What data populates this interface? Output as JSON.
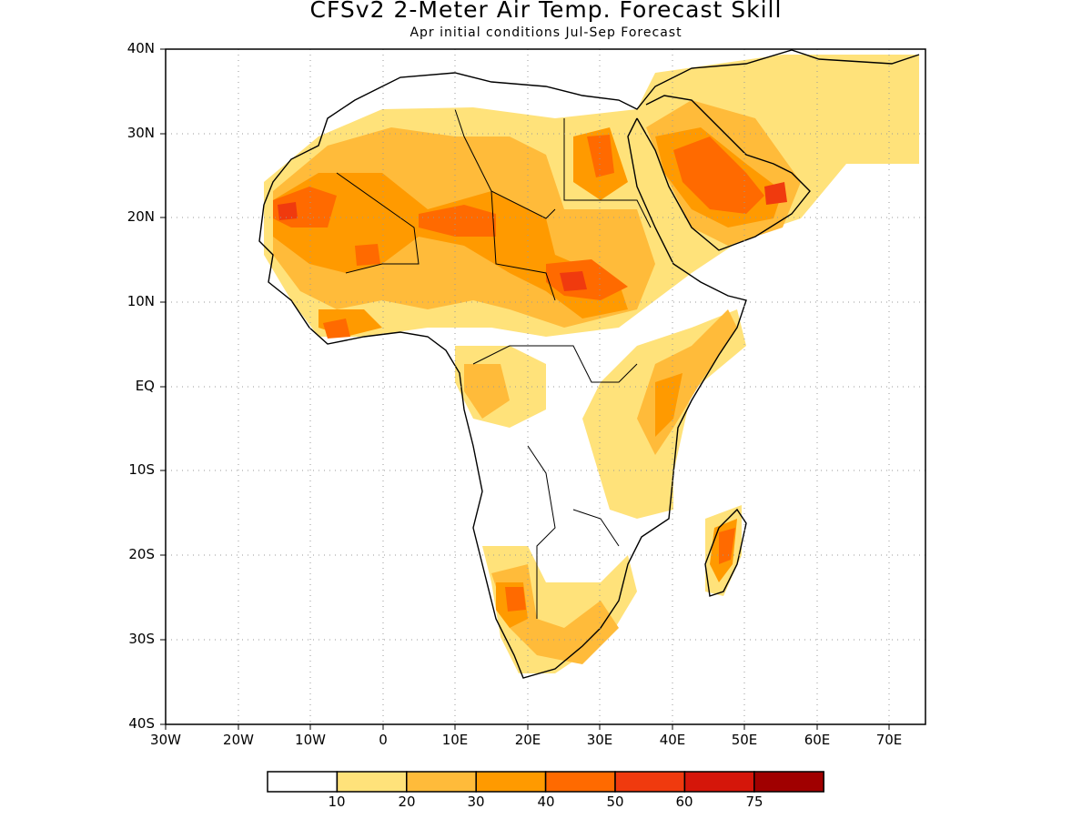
{
  "title": "CFSv2 2-Meter Air Temp. Forecast Skill",
  "subtitle": "Apr initial conditions  Jul-Sep Forecast",
  "lat_labels": [
    "40N",
    "30N",
    "20N",
    "10N",
    "EQ",
    "10S",
    "20S",
    "30S",
    "40S"
  ],
  "lon_labels": [
    "30W",
    "20W",
    "10W",
    "0",
    "10E",
    "20E",
    "30E",
    "40E",
    "50E",
    "60E",
    "70E"
  ],
  "colorbar": {
    "labels": [
      "10",
      "20",
      "30",
      "40",
      "50",
      "60",
      "75"
    ],
    "colors": [
      "#ffffff",
      "#ffe27a",
      "#ffbb3a",
      "#ff9a00",
      "#ff6a00",
      "#f03a0e",
      "#d5160a",
      "#a00000"
    ]
  },
  "map": {
    "projection": "lat-lon",
    "lon_range": [
      -30,
      75
    ],
    "lat_range": [
      -40,
      40
    ],
    "grid": "dotted",
    "region": "Africa and Arabian Peninsula"
  }
}
